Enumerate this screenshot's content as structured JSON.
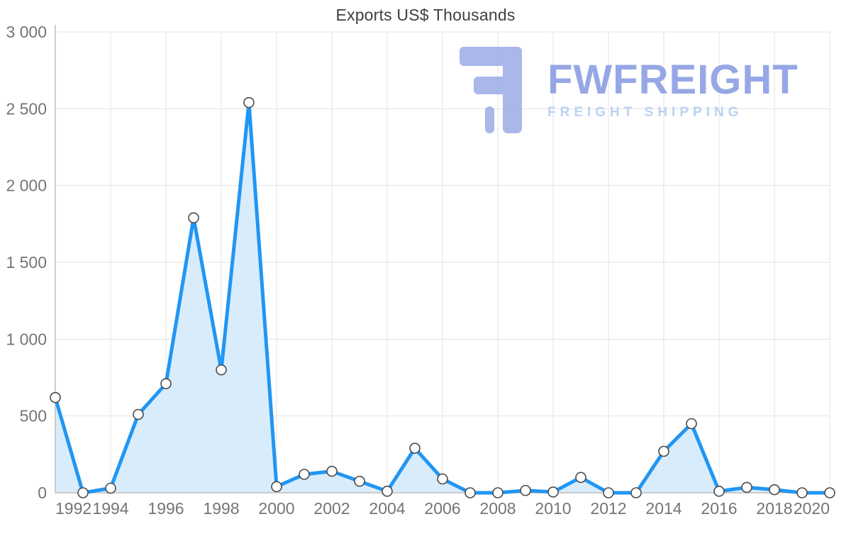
{
  "title": "Exports US$ Thousands",
  "watermark": {
    "brand": "FWFREIGHT",
    "tagline": "FREIGHT SHIPPING",
    "brand_color": "#7b8fe0",
    "tagline_color": "#a9c7ef",
    "logo_color": "#93a4e4"
  },
  "chart_data": {
    "type": "area",
    "title": "Exports US$ Thousands",
    "xlabel": "",
    "ylabel": "",
    "x": [
      1992,
      1993,
      1994,
      1995,
      1996,
      1997,
      1998,
      1999,
      2000,
      2001,
      2002,
      2003,
      2004,
      2005,
      2006,
      2007,
      2008,
      2009,
      2010,
      2011,
      2012,
      2013,
      2014,
      2015,
      2016,
      2017,
      2018,
      2019,
      2020
    ],
    "values": [
      620,
      0,
      30,
      510,
      710,
      1790,
      800,
      2540,
      40,
      120,
      140,
      75,
      10,
      290,
      90,
      0,
      0,
      15,
      5,
      100,
      0,
      0,
      270,
      450,
      10,
      35,
      20,
      0,
      0
    ],
    "ylim": [
      0,
      3000
    ],
    "ytick_step": 500,
    "xtick_step": 2,
    "grid": true,
    "legend": "none",
    "line_color": "#2196f3",
    "fill_color": "#d9ecfb",
    "marker_fill": "#ffffff",
    "marker_stroke": "#4a4a4a",
    "grid_color": "#e3e3e3",
    "axis_color": "#bdbdbd",
    "tick_label_color": "#757575"
  }
}
